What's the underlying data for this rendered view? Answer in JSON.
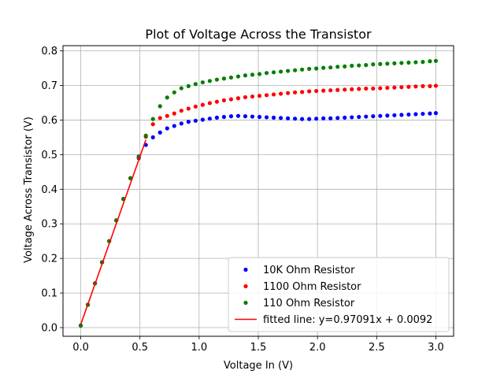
{
  "chart_data": {
    "type": "scatter",
    "title": "Plot of Voltage Across the Transistor",
    "xlabel": "Voltage In (V)",
    "ylabel": "Voltage Across Transistor (V)",
    "xlim": [
      -0.15,
      3.15
    ],
    "ylim": [
      -0.025,
      0.815
    ],
    "xticks": [
      0.0,
      0.5,
      1.0,
      1.5,
      2.0,
      2.5,
      3.0
    ],
    "xtick_labels": [
      "0.0",
      "0.5",
      "1.0",
      "1.5",
      "2.0",
      "2.5",
      "3.0"
    ],
    "yticks": [
      0.0,
      0.1,
      0.2,
      0.3,
      0.4,
      0.5,
      0.6,
      0.7,
      0.8
    ],
    "ytick_labels": [
      "0.0",
      "0.1",
      "0.2",
      "0.3",
      "0.4",
      "0.5",
      "0.6",
      "0.7",
      "0.8"
    ],
    "grid": true,
    "legend_position": "bottom-right",
    "series": [
      {
        "name": "10K Ohm Resistor",
        "color": "#0000ff",
        "marker": "dot",
        "x": [
          0.0,
          0.06,
          0.12,
          0.18,
          0.24,
          0.3,
          0.36,
          0.42,
          0.49,
          0.55,
          0.61,
          0.67,
          0.73,
          0.79,
          0.85,
          0.91,
          0.97,
          1.03,
          1.09,
          1.15,
          1.21,
          1.27,
          1.33,
          1.39,
          1.45,
          1.51,
          1.57,
          1.63,
          1.69,
          1.75,
          1.81,
          1.87,
          1.93,
          1.99,
          2.05,
          2.11,
          2.17,
          2.23,
          2.29,
          2.35,
          2.41,
          2.47,
          2.53,
          2.59,
          2.65,
          2.71,
          2.77,
          2.83,
          2.89,
          2.95,
          3.0
        ],
        "y": [
          0.006,
          0.066,
          0.128,
          0.189,
          0.25,
          0.31,
          0.372,
          0.432,
          0.49,
          0.528,
          0.55,
          0.564,
          0.576,
          0.583,
          0.59,
          0.595,
          0.598,
          0.601,
          0.604,
          0.607,
          0.609,
          0.611,
          0.612,
          0.611,
          0.61,
          0.609,
          0.608,
          0.607,
          0.606,
          0.605,
          0.604,
          0.603,
          0.603,
          0.604,
          0.605,
          0.605,
          0.606,
          0.607,
          0.608,
          0.609,
          0.61,
          0.611,
          0.612,
          0.613,
          0.614,
          0.615,
          0.616,
          0.617,
          0.618,
          0.619,
          0.62
        ]
      },
      {
        "name": "1100 Ohm Resistor",
        "color": "#ff0000",
        "marker": "dot",
        "x": [
          0.0,
          0.06,
          0.12,
          0.18,
          0.24,
          0.3,
          0.36,
          0.42,
          0.49,
          0.55,
          0.61,
          0.67,
          0.73,
          0.79,
          0.85,
          0.91,
          0.97,
          1.03,
          1.09,
          1.15,
          1.21,
          1.27,
          1.33,
          1.39,
          1.45,
          1.51,
          1.57,
          1.63,
          1.69,
          1.75,
          1.81,
          1.87,
          1.93,
          1.99,
          2.05,
          2.11,
          2.17,
          2.23,
          2.29,
          2.35,
          2.41,
          2.47,
          2.53,
          2.59,
          2.65,
          2.71,
          2.77,
          2.83,
          2.89,
          2.95,
          3.0
        ],
        "y": [
          0.006,
          0.066,
          0.128,
          0.189,
          0.25,
          0.31,
          0.372,
          0.432,
          0.492,
          0.552,
          0.588,
          0.606,
          0.612,
          0.619,
          0.627,
          0.633,
          0.639,
          0.644,
          0.649,
          0.653,
          0.657,
          0.66,
          0.663,
          0.666,
          0.668,
          0.67,
          0.672,
          0.674,
          0.676,
          0.678,
          0.68,
          0.681,
          0.683,
          0.684,
          0.685,
          0.686,
          0.687,
          0.688,
          0.689,
          0.69,
          0.691,
          0.691,
          0.692,
          0.693,
          0.694,
          0.695,
          0.696,
          0.697,
          0.698,
          0.698,
          0.699
        ]
      },
      {
        "name": "110 Ohm Resistor",
        "color": "#008000",
        "marker": "dot",
        "x": [
          0.0,
          0.06,
          0.12,
          0.18,
          0.24,
          0.3,
          0.36,
          0.42,
          0.49,
          0.55,
          0.61,
          0.67,
          0.73,
          0.79,
          0.85,
          0.91,
          0.97,
          1.03,
          1.09,
          1.15,
          1.21,
          1.27,
          1.33,
          1.39,
          1.45,
          1.51,
          1.57,
          1.63,
          1.69,
          1.75,
          1.81,
          1.87,
          1.93,
          1.99,
          2.05,
          2.11,
          2.17,
          2.23,
          2.29,
          2.35,
          2.41,
          2.47,
          2.53,
          2.59,
          2.65,
          2.71,
          2.77,
          2.83,
          2.89,
          2.95,
          3.0
        ],
        "y": [
          0.006,
          0.066,
          0.128,
          0.189,
          0.25,
          0.31,
          0.372,
          0.432,
          0.495,
          0.555,
          0.603,
          0.64,
          0.665,
          0.68,
          0.692,
          0.698,
          0.704,
          0.709,
          0.713,
          0.717,
          0.72,
          0.723,
          0.726,
          0.729,
          0.731,
          0.733,
          0.736,
          0.738,
          0.74,
          0.742,
          0.744,
          0.746,
          0.748,
          0.749,
          0.751,
          0.752,
          0.754,
          0.755,
          0.757,
          0.758,
          0.759,
          0.761,
          0.762,
          0.763,
          0.764,
          0.765,
          0.766,
          0.767,
          0.768,
          0.77,
          0.771
        ]
      },
      {
        "name": "fitted line: y=0.97091x + 0.0092",
        "color": "#ff0000",
        "marker": "line",
        "x": [
          0.0,
          0.55
        ],
        "y": [
          0.0092,
          0.543
        ]
      }
    ]
  }
}
